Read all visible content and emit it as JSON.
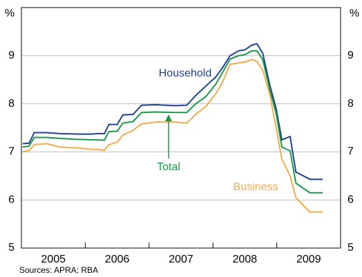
{
  "chart_data": {
    "type": "line",
    "y_unit_left": "%",
    "y_unit_right": "%",
    "source": "Sources: APRA; RBA",
    "x": [
      2005.02,
      2005.12,
      2005.2,
      2005.4,
      2005.6,
      2005.9,
      2006.1,
      2006.2,
      2006.3,
      2006.37,
      2006.5,
      2006.59,
      2006.75,
      2006.88,
      2007.1,
      2007.4,
      2007.59,
      2007.73,
      2007.89,
      2008.04,
      2008.15,
      2008.27,
      2008.4,
      2008.5,
      2008.61,
      2008.69,
      2008.78,
      2008.89,
      2008.99,
      2009.08,
      2009.21,
      2009.3,
      2009.52,
      2009.72
    ],
    "series": [
      {
        "name": "Household",
        "color": "#1f3f95",
        "values": [
          7.17,
          7.18,
          7.4,
          7.4,
          7.38,
          7.37,
          7.37,
          7.38,
          7.38,
          7.57,
          7.57,
          7.77,
          7.78,
          7.97,
          7.98,
          7.96,
          7.97,
          8.17,
          8.37,
          8.55,
          8.75,
          9.0,
          9.1,
          9.12,
          9.22,
          9.25,
          9.05,
          8.4,
          7.9,
          7.25,
          7.32,
          6.58,
          6.43,
          6.43
        ]
      },
      {
        "name": "Total",
        "color": "#1a9a48",
        "values": [
          7.1,
          7.12,
          7.3,
          7.3,
          7.28,
          7.26,
          7.25,
          7.25,
          7.24,
          7.42,
          7.43,
          7.6,
          7.63,
          7.82,
          7.83,
          7.82,
          7.82,
          8.0,
          8.15,
          8.4,
          8.65,
          8.93,
          9.0,
          9.02,
          9.1,
          9.1,
          8.92,
          8.3,
          7.8,
          7.1,
          7.02,
          6.35,
          6.15,
          6.15
        ]
      },
      {
        "name": "Business",
        "color": "#f5a94a",
        "values": [
          7.0,
          7.03,
          7.15,
          7.17,
          7.1,
          7.08,
          7.05,
          7.05,
          7.03,
          7.15,
          7.2,
          7.35,
          7.45,
          7.58,
          7.62,
          7.62,
          7.6,
          7.78,
          7.95,
          8.2,
          8.45,
          8.82,
          8.85,
          8.87,
          8.92,
          8.88,
          8.7,
          8.2,
          7.5,
          6.85,
          6.5,
          6.05,
          5.75,
          5.75
        ]
      }
    ],
    "xlim": [
      2005,
      2010
    ],
    "xticks": [
      2006,
      2007,
      2008,
      2009
    ],
    "year_labels": [
      2005,
      2006,
      2007,
      2008,
      2009
    ],
    "ylim": [
      5,
      10
    ],
    "yticks": [
      5,
      6,
      7,
      8,
      9
    ],
    "grid": true
  }
}
